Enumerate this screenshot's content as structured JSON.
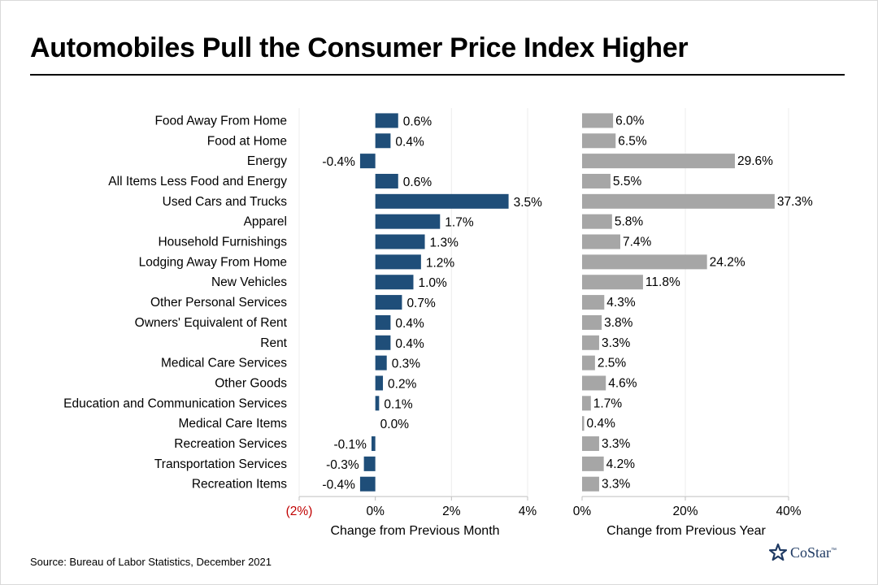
{
  "title": "Automobiles Pull the Consumer Price Index Higher",
  "source": "Source: Bureau of Labor Statistics, December 2021",
  "logo": {
    "text": "CoStar",
    "tm": "™",
    "icon": "costar-star-icon"
  },
  "colors": {
    "monthly_bar": "#1f4e79",
    "yearly_bar": "#a6a6a6",
    "negative_tick": "#c00000",
    "grid": "#ededed"
  },
  "chart_data": [
    {
      "type": "bar",
      "orientation": "horizontal",
      "xlabel": "Change from Previous Month",
      "xlim": [
        -2,
        4
      ],
      "xticks": [
        -2,
        0,
        2,
        4
      ],
      "xtick_labels": [
        "(2%)",
        "0%",
        "2%",
        "4%"
      ],
      "categories": [
        "Food Away From Home",
        "Food at Home",
        "Energy",
        "All Items Less Food and Energy",
        "Used Cars and Trucks",
        "Apparel",
        "Household Furnishings",
        "Lodging Away From Home",
        "New Vehicles",
        "Other Personal Services",
        "Owners' Equivalent of Rent",
        "Rent",
        "Medical Care Services",
        "Other Goods",
        "Education and Communication Services",
        "Medical Care Items",
        "Recreation Services",
        "Transportation Services",
        "Recreation Items"
      ],
      "values": [
        0.6,
        0.4,
        -0.4,
        0.6,
        3.5,
        1.7,
        1.3,
        1.2,
        1.0,
        0.7,
        0.4,
        0.4,
        0.3,
        0.2,
        0.1,
        0.0,
        -0.1,
        -0.3,
        -0.4
      ],
      "data_labels": [
        "0.6%",
        "0.4%",
        "-0.4%",
        "0.6%",
        "3.5%",
        "1.7%",
        "1.3%",
        "1.2%",
        "1.0%",
        "0.7%",
        "0.4%",
        "0.4%",
        "0.3%",
        "0.2%",
        "0.1%",
        "0.0%",
        "-0.1%",
        "-0.3%",
        "-0.4%"
      ],
      "grid": true
    },
    {
      "type": "bar",
      "orientation": "horizontal",
      "xlabel": "Change from Previous Year",
      "xlim": [
        0,
        40
      ],
      "xticks": [
        0,
        20,
        40
      ],
      "xtick_labels": [
        "0%",
        "20%",
        "40%"
      ],
      "values": [
        6.0,
        6.5,
        29.6,
        5.5,
        37.3,
        5.8,
        7.4,
        24.2,
        11.8,
        4.3,
        3.8,
        3.3,
        2.5,
        4.6,
        1.7,
        0.4,
        3.3,
        4.2,
        3.3
      ],
      "data_labels": [
        "6.0%",
        "6.5%",
        "29.6%",
        "5.5%",
        "37.3%",
        "5.8%",
        "7.4%",
        "24.2%",
        "11.8%",
        "4.3%",
        "3.8%",
        "3.3%",
        "2.5%",
        "4.6%",
        "1.7%",
        "0.4%",
        "3.3%",
        "4.2%",
        "3.3%"
      ],
      "grid": true
    }
  ]
}
